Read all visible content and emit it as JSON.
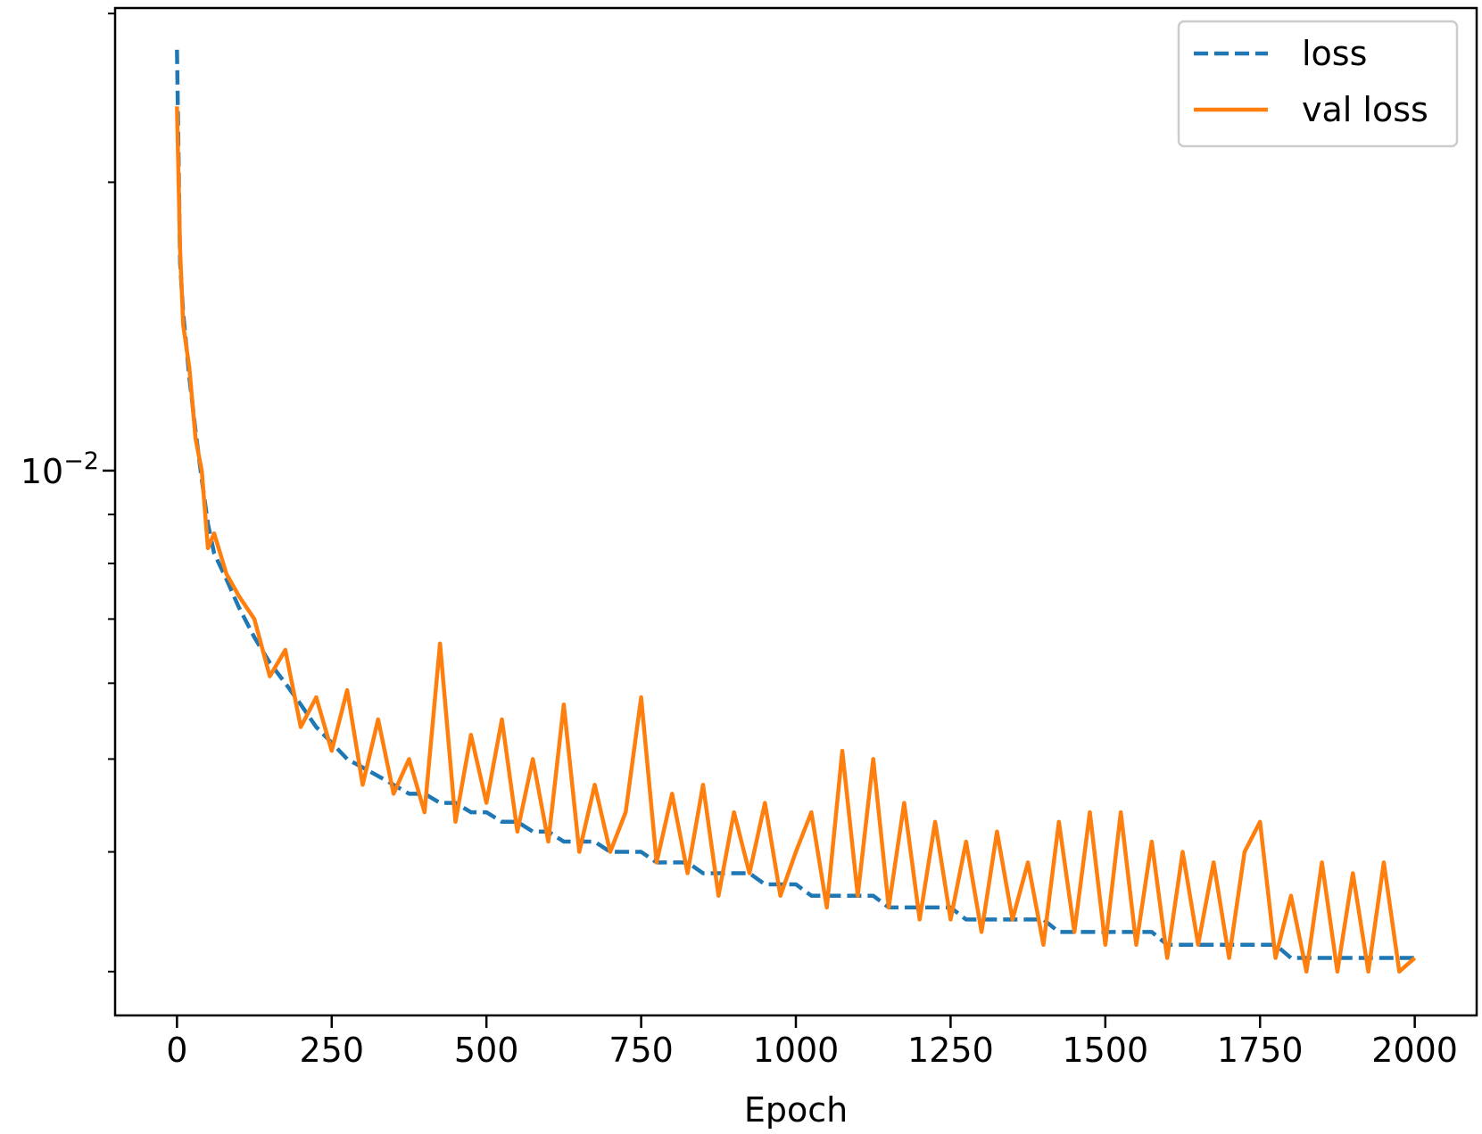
{
  "chart_data": {
    "type": "line",
    "xlabel": "Epoch",
    "yscale": "log",
    "legend": "upper right",
    "x": [
      0,
      5,
      10,
      20,
      30,
      40,
      50,
      60,
      80,
      100,
      125,
      150,
      175,
      200,
      225,
      250,
      275,
      300,
      325,
      350,
      375,
      400,
      425,
      450,
      475,
      500,
      525,
      550,
      575,
      600,
      625,
      650,
      675,
      700,
      725,
      750,
      775,
      800,
      825,
      850,
      875,
      900,
      925,
      950,
      975,
      1000,
      1025,
      1050,
      1075,
      1100,
      1125,
      1150,
      1175,
      1200,
      1225,
      1250,
      1275,
      1300,
      1325,
      1350,
      1375,
      1400,
      1425,
      1450,
      1475,
      1500,
      1525,
      1550,
      1575,
      1600,
      1625,
      1650,
      1675,
      1700,
      1725,
      1750,
      1775,
      1800,
      1825,
      1850,
      1875,
      1900,
      1925,
      1950,
      1975,
      2000
    ],
    "series": [
      {
        "name": "loss",
        "color": "#1f77b4",
        "dash": true,
        "values": [
          0.0275,
          0.0165,
          0.0146,
          0.0125,
          0.011,
          0.0098,
          0.0088,
          0.0082,
          0.0077,
          0.0072,
          0.0067,
          0.0063,
          0.006,
          0.0057,
          0.0054,
          0.0052,
          0.005,
          0.0049,
          0.0048,
          0.0047,
          0.0046,
          0.0046,
          0.0045,
          0.0045,
          0.0044,
          0.0044,
          0.0043,
          0.0043,
          0.0042,
          0.0042,
          0.0041,
          0.0041,
          0.0041,
          0.004,
          0.004,
          0.004,
          0.0039,
          0.0039,
          0.0039,
          0.0038,
          0.0038,
          0.0038,
          0.0038,
          0.0037,
          0.0037,
          0.0037,
          0.0036,
          0.0036,
          0.0036,
          0.0036,
          0.0036,
          0.0035,
          0.0035,
          0.0035,
          0.0035,
          0.0035,
          0.0034,
          0.0034,
          0.0034,
          0.0034,
          0.0034,
          0.0034,
          0.0033,
          0.0033,
          0.0033,
          0.0033,
          0.0033,
          0.0033,
          0.0033,
          0.0032,
          0.0032,
          0.0032,
          0.0032,
          0.0032,
          0.0032,
          0.0032,
          0.0032,
          0.0031,
          0.0031,
          0.0031,
          0.0031,
          0.0031,
          0.0031,
          0.0031,
          0.0031,
          0.0031
        ]
      },
      {
        "name": "val loss",
        "color": "#ff7f0e",
        "dash": false,
        "values": [
          0.024,
          0.017,
          0.0142,
          0.0128,
          0.0108,
          0.01,
          0.0083,
          0.0086,
          0.0078,
          0.0074,
          0.007,
          0.0061,
          0.0065,
          0.0054,
          0.0058,
          0.0051,
          0.0059,
          0.0047,
          0.0055,
          0.0046,
          0.005,
          0.0044,
          0.0066,
          0.0043,
          0.0053,
          0.0045,
          0.0055,
          0.0042,
          0.005,
          0.0041,
          0.0057,
          0.004,
          0.0047,
          0.004,
          0.0044,
          0.0058,
          0.0039,
          0.0046,
          0.0038,
          0.0047,
          0.0036,
          0.0044,
          0.0038,
          0.0045,
          0.0036,
          0.004,
          0.0044,
          0.0035,
          0.0051,
          0.0036,
          0.005,
          0.0035,
          0.0045,
          0.0034,
          0.0043,
          0.0034,
          0.0041,
          0.0033,
          0.0042,
          0.0034,
          0.0039,
          0.0032,
          0.0043,
          0.0033,
          0.0044,
          0.0032,
          0.0044,
          0.0032,
          0.0041,
          0.0031,
          0.004,
          0.0032,
          0.0039,
          0.0031,
          0.004,
          0.0043,
          0.0031,
          0.0036,
          0.003,
          0.0039,
          0.003,
          0.0038,
          0.003,
          0.0039,
          0.003,
          0.0031
        ]
      }
    ],
    "xlim": [
      -100,
      2100
    ],
    "xticks": [
      0,
      250,
      500,
      750,
      1000,
      1250,
      1500,
      1750,
      2000
    ],
    "ylim": [
      0.0027,
      0.0304
    ],
    "yticks": [
      {
        "value": 0.01,
        "label": "10",
        "exponent": "−2"
      }
    ],
    "yminorticks": [
      0.003,
      0.004,
      0.005,
      0.006,
      0.007,
      0.008,
      0.009,
      0.02,
      0.03
    ]
  }
}
